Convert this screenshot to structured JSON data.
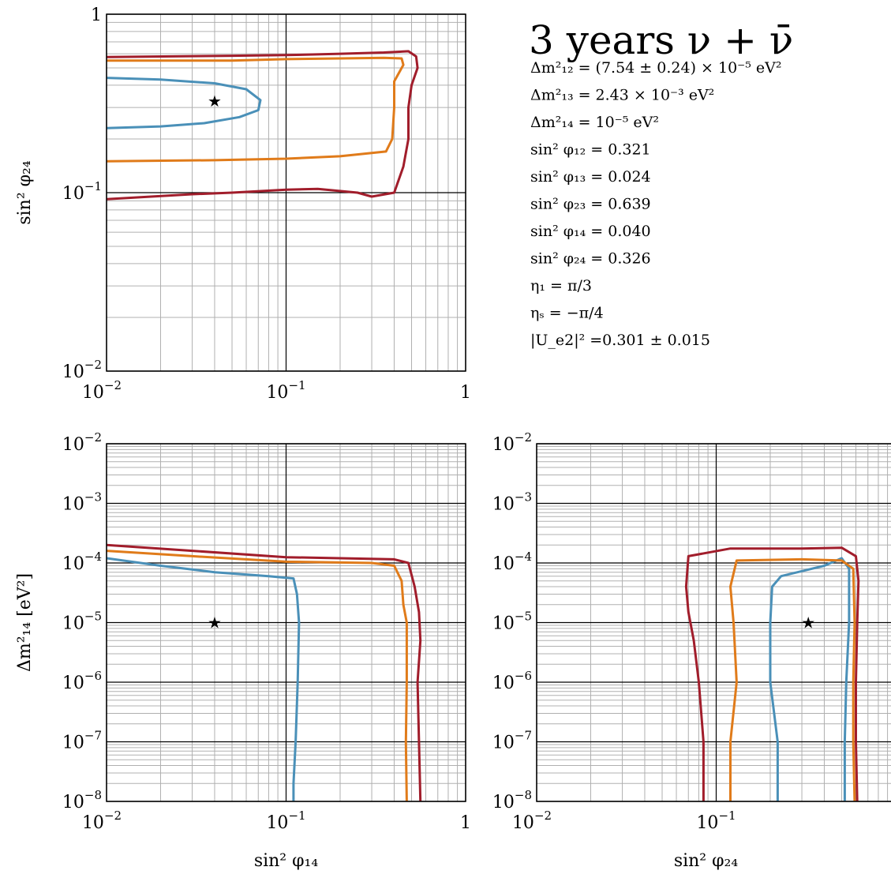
{
  "title": "3 years ν + ν̄",
  "parameters": [
    {
      "lhs": "Δm²₁₂",
      "rhs": "= (7.54 ± 0.24) × 10⁻⁵  eV²"
    },
    {
      "lhs": "Δm²₁₃",
      "rhs": "= 2.43 × 10⁻³  eV²"
    },
    {
      "lhs": "Δm²₁₄",
      "rhs": "= 10⁻⁵  eV²"
    },
    {
      "lhs": "sin² φ₁₂",
      "rhs": "= 0.321"
    },
    {
      "lhs": "sin² φ₁₃",
      "rhs": "= 0.024"
    },
    {
      "lhs": "sin² φ₂₃",
      "rhs": "= 0.639"
    },
    {
      "lhs": "sin² φ₁₄",
      "rhs": "= 0.040"
    },
    {
      "lhs": "sin² φ₂₄",
      "rhs": "= 0.326"
    },
    {
      "lhs": "η₁",
      "rhs": "= π/3"
    },
    {
      "lhs": "ηₛ",
      "rhs": "= −π/4"
    },
    {
      "lhs": "|U_e2|²",
      "rhs": "=0.301 ± 0.015"
    }
  ],
  "colors": {
    "blue": "#4a90b8",
    "orange": "#e07b1a",
    "red": "#a11d2b",
    "grid_minor": "#b0b0b0",
    "grid_major": "#000000"
  },
  "chart_data": [
    {
      "type": "line",
      "id": "top",
      "xlabel": "",
      "ylabel": "sin² φ₂₄",
      "xscale": "log",
      "yscale": "log",
      "xlim": [
        0.01,
        1
      ],
      "ylim": [
        0.01,
        1
      ],
      "xticks": [
        {
          "base": "10",
          "exp": "−2",
          "v": 0.01
        },
        {
          "base": "10",
          "exp": "−1",
          "v": 0.1
        },
        {
          "base": "1",
          "exp": "",
          "v": 1
        }
      ],
      "yticks": [
        {
          "base": "10",
          "exp": "−2",
          "v": 0.01
        },
        {
          "base": "10",
          "exp": "−1",
          "v": 0.1
        },
        {
          "base": "1",
          "exp": "",
          "v": 1
        }
      ],
      "true_point": {
        "x": 0.04,
        "y": 0.326
      },
      "series": [
        {
          "color": "blue",
          "points": [
            [
              0.01,
              0.44
            ],
            [
              0.02,
              0.43
            ],
            [
              0.04,
              0.41
            ],
            [
              0.06,
              0.38
            ],
            [
              0.072,
              0.33
            ],
            [
              0.07,
              0.29
            ],
            [
              0.055,
              0.265
            ],
            [
              0.035,
              0.245
            ],
            [
              0.02,
              0.235
            ],
            [
              0.01,
              0.23
            ]
          ]
        },
        {
          "color": "orange",
          "points": [
            [
              0.01,
              0.55
            ],
            [
              0.05,
              0.55
            ],
            [
              0.1,
              0.56
            ],
            [
              0.2,
              0.565
            ],
            [
              0.35,
              0.57
            ],
            [
              0.44,
              0.565
            ],
            [
              0.45,
              0.52
            ],
            [
              0.4,
              0.42
            ],
            [
              0.4,
              0.3
            ],
            [
              0.39,
              0.2
            ],
            [
              0.36,
              0.17
            ],
            [
              0.2,
              0.16
            ],
            [
              0.1,
              0.155
            ],
            [
              0.04,
              0.152
            ],
            [
              0.01,
              0.15
            ]
          ]
        },
        {
          "color": "red",
          "points": [
            [
              0.01,
              0.575
            ],
            [
              0.05,
              0.585
            ],
            [
              0.1,
              0.59
            ],
            [
              0.2,
              0.6
            ],
            [
              0.35,
              0.61
            ],
            [
              0.48,
              0.62
            ],
            [
              0.53,
              0.58
            ],
            [
              0.54,
              0.5
            ],
            [
              0.5,
              0.4
            ],
            [
              0.48,
              0.3
            ],
            [
              0.48,
              0.2
            ],
            [
              0.45,
              0.14
            ],
            [
              0.4,
              0.1
            ],
            [
              0.3,
              0.095
            ],
            [
              0.25,
              0.1
            ],
            [
              0.15,
              0.105
            ],
            [
              0.1,
              0.104
            ],
            [
              0.05,
              0.1
            ],
            [
              0.03,
              0.098
            ],
            [
              0.01,
              0.092
            ]
          ]
        }
      ]
    },
    {
      "type": "line",
      "id": "bottom-left",
      "xlabel": "sin² φ₁₄",
      "ylabel": "Δm²₁₄ [eV²]",
      "xscale": "log",
      "yscale": "log",
      "xlim": [
        0.01,
        1
      ],
      "ylim": [
        1e-08,
        0.01
      ],
      "xticks": [
        {
          "base": "10",
          "exp": "−2",
          "v": 0.01
        },
        {
          "base": "10",
          "exp": "−1",
          "v": 0.1
        },
        {
          "base": "1",
          "exp": "",
          "v": 1
        }
      ],
      "yticks": [
        {
          "base": "10",
          "exp": "−8",
          "v": 1e-08
        },
        {
          "base": "10",
          "exp": "−7",
          "v": 1e-07
        },
        {
          "base": "10",
          "exp": "−6",
          "v": 1e-06
        },
        {
          "base": "10",
          "exp": "−5",
          "v": 1e-05
        },
        {
          "base": "10",
          "exp": "−4",
          "v": 0.0001
        },
        {
          "base": "10",
          "exp": "−3",
          "v": 0.001
        },
        {
          "base": "10",
          "exp": "−2",
          "v": 0.01
        }
      ],
      "true_point": {
        "x": 0.04,
        "y": 1e-05
      },
      "series": [
        {
          "color": "blue",
          "points": [
            [
              0.01,
              0.00012
            ],
            [
              0.02,
              9e-05
            ],
            [
              0.04,
              7e-05
            ],
            [
              0.08,
              6e-05
            ],
            [
              0.11,
              5.5e-05
            ],
            [
              0.115,
              3e-05
            ],
            [
              0.118,
              1e-05
            ],
            [
              0.116,
              1e-06
            ],
            [
              0.113,
              1e-07
            ],
            [
              0.11,
              2e-08
            ],
            [
              0.11,
              1e-08
            ]
          ]
        },
        {
          "color": "orange",
          "points": [
            [
              0.01,
              0.00016
            ],
            [
              0.03,
              0.00013
            ],
            [
              0.1,
              0.000105
            ],
            [
              0.3,
              0.0001
            ],
            [
              0.4,
              9e-05
            ],
            [
              0.44,
              5e-05
            ],
            [
              0.45,
              2e-05
            ],
            [
              0.47,
              1e-05
            ],
            [
              0.47,
              1e-06
            ],
            [
              0.465,
              1e-07
            ],
            [
              0.47,
              1e-08
            ]
          ]
        },
        {
          "color": "red",
          "points": [
            [
              0.01,
              0.0002
            ],
            [
              0.03,
              0.00016
            ],
            [
              0.1,
              0.000125
            ],
            [
              0.2,
              0.00012
            ],
            [
              0.4,
              0.000115
            ],
            [
              0.48,
              0.0001
            ],
            [
              0.52,
              4e-05
            ],
            [
              0.55,
              1.5e-05
            ],
            [
              0.56,
              5e-06
            ],
            [
              0.54,
              1e-06
            ],
            [
              0.55,
              1e-07
            ],
            [
              0.56,
              1e-08
            ]
          ]
        }
      ]
    },
    {
      "type": "line",
      "id": "bottom-right",
      "xlabel": "sin² φ₂₄",
      "ylabel": "",
      "xscale": "log",
      "yscale": "log",
      "xlim": [
        0.01,
        1
      ],
      "ylim": [
        1e-08,
        0.01
      ],
      "xticks": [
        {
          "base": "10",
          "exp": "−2",
          "v": 0.01
        },
        {
          "base": "10",
          "exp": "−1",
          "v": 0.1
        }
      ],
      "yticks": [
        {
          "base": "10",
          "exp": "−8",
          "v": 1e-08
        },
        {
          "base": "10",
          "exp": "−7",
          "v": 1e-07
        },
        {
          "base": "10",
          "exp": "−6",
          "v": 1e-06
        },
        {
          "base": "10",
          "exp": "−5",
          "v": 1e-05
        },
        {
          "base": "10",
          "exp": "−4",
          "v": 0.0001
        },
        {
          "base": "10",
          "exp": "−3",
          "v": 0.001
        },
        {
          "base": "10",
          "exp": "−2",
          "v": 0.01
        }
      ],
      "true_point": {
        "x": 0.326,
        "y": 1e-05
      },
      "series": [
        {
          "color": "blue",
          "points": [
            [
              0.22,
              1e-08
            ],
            [
              0.22,
              1e-07
            ],
            [
              0.2,
              1e-06
            ],
            [
              0.2,
              1e-05
            ],
            [
              0.205,
              4e-05
            ],
            [
              0.23,
              6e-05
            ],
            [
              0.4,
              9e-05
            ],
            [
              0.5,
              0.00012
            ],
            [
              0.55,
              8e-05
            ],
            [
              0.55,
              1e-05
            ],
            [
              0.53,
              1e-06
            ],
            [
              0.52,
              1e-07
            ],
            [
              0.52,
              1e-08
            ]
          ]
        },
        {
          "color": "orange",
          "points": [
            [
              0.12,
              1e-08
            ],
            [
              0.12,
              1e-07
            ],
            [
              0.13,
              1e-06
            ],
            [
              0.125,
              1e-05
            ],
            [
              0.12,
              4e-05
            ],
            [
              0.13,
              0.00011
            ],
            [
              0.3,
              0.000115
            ],
            [
              0.5,
              0.00011
            ],
            [
              0.58,
              8e-05
            ],
            [
              0.59,
              1e-05
            ],
            [
              0.58,
              1e-06
            ],
            [
              0.58,
              1e-07
            ],
            [
              0.59,
              1e-08
            ]
          ]
        },
        {
          "color": "red",
          "points": [
            [
              0.085,
              1e-08
            ],
            [
              0.085,
              1e-07
            ],
            [
              0.08,
              1e-06
            ],
            [
              0.075,
              5e-06
            ],
            [
              0.07,
              1.5e-05
            ],
            [
              0.068,
              4e-05
            ],
            [
              0.07,
              0.00013
            ],
            [
              0.12,
              0.000175
            ],
            [
              0.3,
              0.000175
            ],
            [
              0.5,
              0.00018
            ],
            [
              0.6,
              0.00013
            ],
            [
              0.62,
              5e-05
            ],
            [
              0.61,
              1e-05
            ],
            [
              0.6,
              1e-06
            ],
            [
              0.6,
              1e-07
            ],
            [
              0.61,
              1e-08
            ]
          ]
        }
      ]
    }
  ]
}
